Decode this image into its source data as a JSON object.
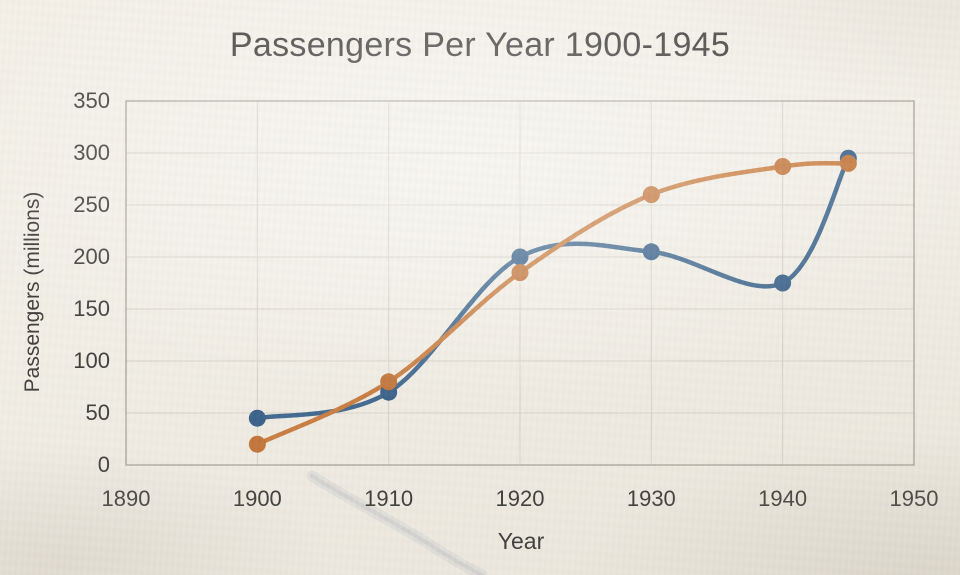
{
  "page": {
    "background_color": "#f1eee6",
    "text_color": "#3c3b38"
  },
  "chart_data": {
    "type": "line",
    "title": "Passengers Per Year 1900-1945",
    "xlabel": "Year",
    "ylabel": "Passengers (millions)",
    "xlim": [
      1890,
      1950
    ],
    "ylim": [
      0,
      350
    ],
    "x_ticks": [
      1890,
      1900,
      1910,
      1920,
      1930,
      1940,
      1950
    ],
    "y_ticks": [
      0,
      50,
      100,
      150,
      200,
      250,
      300,
      350
    ],
    "grid": true,
    "legend": "none",
    "smooth": true,
    "x": [
      1900,
      1910,
      1920,
      1930,
      1940,
      1945
    ],
    "series": [
      {
        "name": "blue",
        "color": "#40688f",
        "marker_color": "#3a618a",
        "values": [
          45,
          70,
          200,
          205,
          175,
          295
        ]
      },
      {
        "name": "orange",
        "color": "#c97d41",
        "marker_color": "#c2753a",
        "values": [
          20,
          80,
          185,
          260,
          287,
          290
        ]
      }
    ],
    "grid_color": "#d6d2c6",
    "border_color": "#a9a49a",
    "marker_radius": 8.5,
    "line_width": 4.5
  }
}
